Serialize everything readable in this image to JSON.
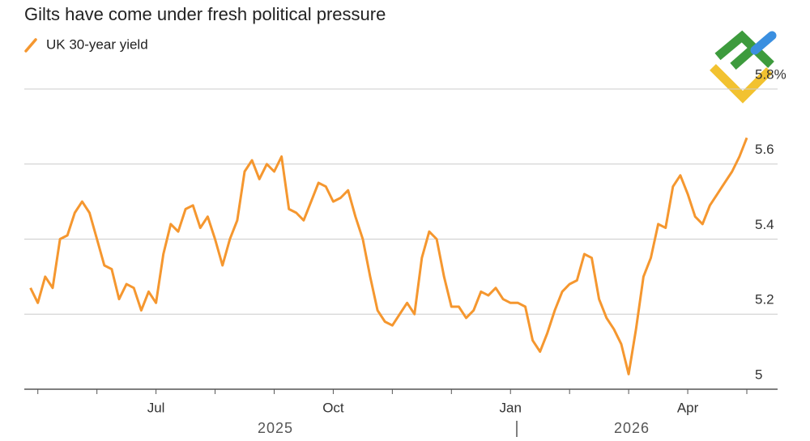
{
  "chart_data": {
    "type": "line",
    "title": "Gilts have come under fresh political pressure",
    "categories": [
      null,
      null,
      null,
      null,
      null,
      null,
      null,
      null,
      null,
      null,
      null,
      null,
      null,
      null,
      null,
      null,
      null,
      "Jul",
      null,
      null,
      null,
      null,
      null,
      null,
      null,
      null,
      null,
      null,
      null,
      null,
      null,
      null,
      null,
      null,
      null,
      null,
      null,
      null,
      null,
      null,
      null,
      "Oct",
      null,
      null,
      null,
      null,
      null,
      null,
      null,
      null,
      null,
      null,
      null,
      null,
      null,
      null,
      null,
      null,
      null,
      null,
      null,
      null,
      null,
      null,
      null,
      "Jan",
      null,
      null,
      null,
      null,
      null,
      null,
      null,
      null,
      null,
      null,
      null,
      null,
      null,
      null,
      null,
      null,
      null,
      null,
      null,
      null,
      null,
      null,
      null,
      "Apr",
      null,
      null,
      null,
      null,
      null,
      null,
      null,
      null
    ],
    "year_labels": [
      "2025",
      "2026"
    ],
    "series": [
      {
        "name": "UK 30-year yield",
        "color": "#f5972f",
        "values": [
          5.27,
          5.23,
          5.3,
          5.27,
          5.4,
          5.41,
          5.47,
          5.5,
          5.47,
          5.4,
          5.33,
          5.32,
          5.24,
          5.28,
          5.27,
          5.21,
          5.26,
          5.23,
          5.36,
          5.44,
          5.42,
          5.48,
          5.49,
          5.43,
          5.46,
          5.4,
          5.33,
          5.4,
          5.45,
          5.58,
          5.61,
          5.56,
          5.6,
          5.58,
          5.62,
          5.48,
          5.47,
          5.45,
          5.5,
          5.55,
          5.54,
          5.5,
          5.51,
          5.53,
          5.46,
          5.4,
          5.3,
          5.21,
          5.18,
          5.17,
          5.2,
          5.23,
          5.2,
          5.35,
          5.42,
          5.4,
          5.3,
          5.22,
          5.22,
          5.19,
          5.21,
          5.26,
          5.25,
          5.27,
          5.24,
          5.23,
          5.23,
          5.22,
          5.13,
          5.1,
          5.15,
          5.21,
          5.26,
          5.28,
          5.29,
          5.36,
          5.35,
          5.24,
          5.19,
          5.16,
          5.12,
          5.04,
          5.16,
          5.3,
          5.35,
          5.44,
          5.43,
          5.54,
          5.57,
          5.52,
          5.46,
          5.44,
          5.49,
          5.52,
          5.55,
          5.58,
          5.62,
          5.67
        ]
      }
    ],
    "ylim": [
      5.0,
      5.8
    ],
    "yticks": [
      5.0,
      5.2,
      5.4,
      5.6,
      {
        "value": 5.8,
        "label": "5.8%"
      }
    ],
    "grid": true
  }
}
